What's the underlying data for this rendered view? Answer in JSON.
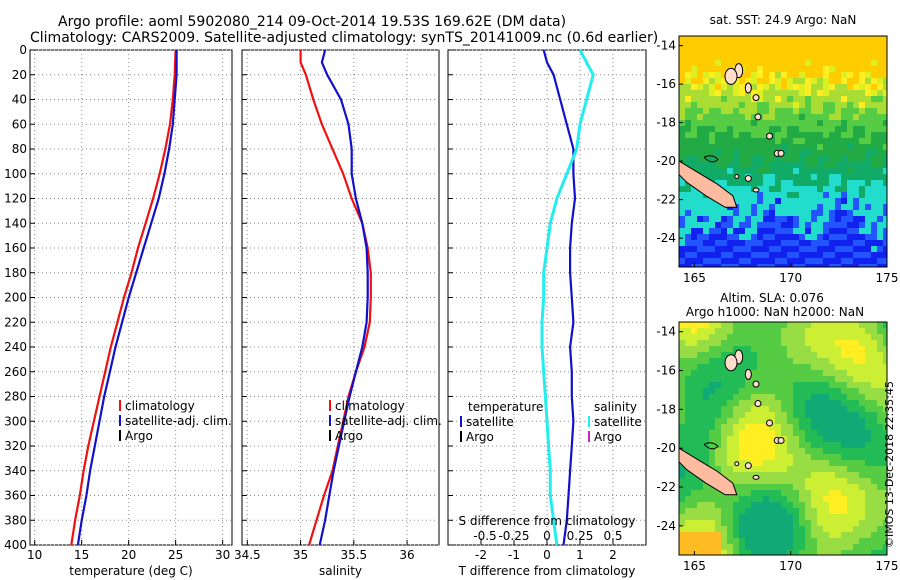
{
  "title": {
    "line1": "Argo profile: aoml 5902080_214 09-Oct-2014 19.53S 169.62E (DM data)",
    "line2": "Climatology: CARS2009. Satellite-adjusted climatology: synTS_20141009.nc (0.6d earlier)"
  },
  "colors": {
    "climatology": "#ee1111",
    "satellite": "#1111cc",
    "argo": "#000000",
    "sat_salinity": "#22eeee",
    "argo_salinity": "#cc22cc"
  },
  "chart_data": [
    {
      "type": "line",
      "id": "temperature",
      "xlabel": "temperature (deg C)",
      "xlim": [
        9.5,
        31
      ],
      "xticks": [
        10,
        15,
        20,
        25,
        30
      ],
      "ylim": [
        400,
        0
      ],
      "yticks": [
        0,
        20,
        40,
        60,
        80,
        100,
        120,
        140,
        160,
        180,
        200,
        220,
        240,
        260,
        280,
        300,
        320,
        340,
        360,
        380,
        400
      ],
      "grid": true,
      "legend": {
        "position": "center-right",
        "entries": [
          "climatology",
          "satellite-adj. clim.",
          "Argo"
        ]
      },
      "series": [
        {
          "name": "climatology",
          "depth": [
            0,
            20,
            40,
            60,
            80,
            100,
            120,
            140,
            160,
            180,
            200,
            220,
            240,
            260,
            280,
            300,
            320,
            340,
            360,
            380,
            400
          ],
          "values": [
            25.0,
            24.9,
            24.7,
            24.4,
            23.9,
            23.3,
            22.6,
            21.8,
            21.0,
            20.3,
            19.5,
            18.8,
            18.1,
            17.5,
            16.9,
            16.3,
            15.7,
            15.2,
            14.8,
            14.3,
            13.9
          ]
        },
        {
          "name": "satellite-adj. clim.",
          "depth": [
            0,
            20,
            40,
            60,
            80,
            100,
            120,
            140,
            160,
            180,
            200,
            220,
            240,
            260,
            280,
            300,
            320,
            340,
            360,
            380,
            400
          ],
          "values": [
            25.1,
            25.1,
            24.9,
            24.7,
            24.3,
            23.8,
            23.2,
            22.4,
            21.6,
            20.8,
            20.0,
            19.3,
            18.6,
            18.0,
            17.4,
            16.9,
            16.4,
            15.9,
            15.5,
            15.0,
            14.6
          ]
        }
      ]
    },
    {
      "type": "line",
      "id": "salinity",
      "xlabel": "salinity",
      "xlim": [
        34.45,
        36.3
      ],
      "xticks": [
        34.5,
        35,
        35.5,
        36
      ],
      "ylim": [
        400,
        0
      ],
      "grid": true,
      "legend": {
        "position": "bottom-right",
        "entries": [
          "climatology",
          "satellite-adj. clim.",
          "Argo"
        ]
      },
      "series": [
        {
          "name": "climatology",
          "depth": [
            0,
            10,
            20,
            40,
            60,
            80,
            100,
            120,
            140,
            160,
            180,
            200,
            220,
            240,
            260,
            280,
            300,
            320,
            340,
            360,
            380,
            400
          ],
          "values": [
            35.0,
            35.0,
            35.05,
            35.12,
            35.2,
            35.3,
            35.4,
            35.48,
            35.58,
            35.63,
            35.66,
            35.66,
            35.65,
            35.6,
            35.52,
            35.45,
            35.4,
            35.35,
            35.3,
            35.22,
            35.15,
            35.08
          ]
        },
        {
          "name": "satellite-adj. clim.",
          "depth": [
            0,
            10,
            20,
            40,
            60,
            80,
            100,
            120,
            140,
            160,
            180,
            200,
            220,
            240,
            260,
            280,
            300,
            320,
            340,
            360,
            380,
            400
          ],
          "values": [
            35.23,
            35.2,
            35.25,
            35.38,
            35.45,
            35.48,
            35.48,
            35.52,
            35.58,
            35.62,
            35.63,
            35.63,
            35.62,
            35.58,
            35.52,
            35.46,
            35.41,
            35.36,
            35.31,
            35.27,
            35.23,
            35.18
          ]
        }
      ]
    },
    {
      "type": "line",
      "id": "difference",
      "xlabel": "T difference from climatology",
      "xlabel2": "S difference from climatology",
      "xlim": [
        -3,
        3
      ],
      "xticks": [
        -2,
        -1,
        0,
        1,
        2
      ],
      "xticks_s": [
        "-0.5",
        "-0.25",
        "0",
        "0.25",
        "0.5"
      ],
      "xticks_s_pos": [
        -2,
        -1,
        0,
        1,
        2
      ],
      "ylim": [
        400,
        0
      ],
      "grid": true,
      "legend": {
        "position": "bottom",
        "temperature_title": "temperature",
        "salinity_title": "salinity",
        "entries": [
          "satellite",
          "Argo"
        ]
      },
      "series": [
        {
          "name": "T satellite",
          "depth": [
            0,
            10,
            20,
            40,
            60,
            80,
            100,
            120,
            140,
            160,
            180,
            200,
            220,
            240,
            260,
            280,
            300,
            320,
            340,
            360,
            380,
            400
          ],
          "values": [
            -0.1,
            0.0,
            0.2,
            0.4,
            0.6,
            0.8,
            0.8,
            0.85,
            0.75,
            0.7,
            0.7,
            0.75,
            0.8,
            0.7,
            0.75,
            0.75,
            0.8,
            0.75,
            0.7,
            0.65,
            0.6,
            0.5
          ]
        },
        {
          "name": "S satellite",
          "depth": [
            0,
            10,
            20,
            40,
            60,
            80,
            100,
            120,
            140,
            160,
            180,
            200,
            220,
            240,
            260,
            280,
            300,
            320,
            340,
            360,
            380,
            400
          ],
          "values": [
            1.0,
            1.2,
            1.4,
            1.2,
            1.0,
            0.9,
            0.6,
            0.3,
            0.1,
            0.0,
            -0.1,
            -0.1,
            -0.15,
            -0.15,
            -0.1,
            -0.05,
            0.0,
            0.05,
            0.1,
            0.1,
            0.2,
            0.3
          ]
        }
      ]
    },
    {
      "type": "heatmap",
      "id": "sst_map",
      "title": "sat. SST: 24.9 Argo: NaN",
      "xlim": [
        164.2,
        175
      ],
      "ylim": [
        -25.5,
        -13.5
      ],
      "xticks": [
        165,
        170,
        175
      ],
      "yticks": [
        -14,
        -16,
        -18,
        -20,
        -22,
        -24
      ]
    },
    {
      "type": "heatmap",
      "id": "sla_map",
      "title": "Altim. SLA: 0.076",
      "title2": "Argo h1000: NaN h2000: NaN",
      "xlim": [
        164.2,
        175
      ],
      "ylim": [
        -25.5,
        -13.5
      ],
      "xticks": [
        165,
        170,
        175
      ],
      "yticks": [
        -14,
        -16,
        -18,
        -20,
        -22,
        -24
      ]
    }
  ],
  "stamp": "©IMOS 13-Dec-2018 22:35:45"
}
